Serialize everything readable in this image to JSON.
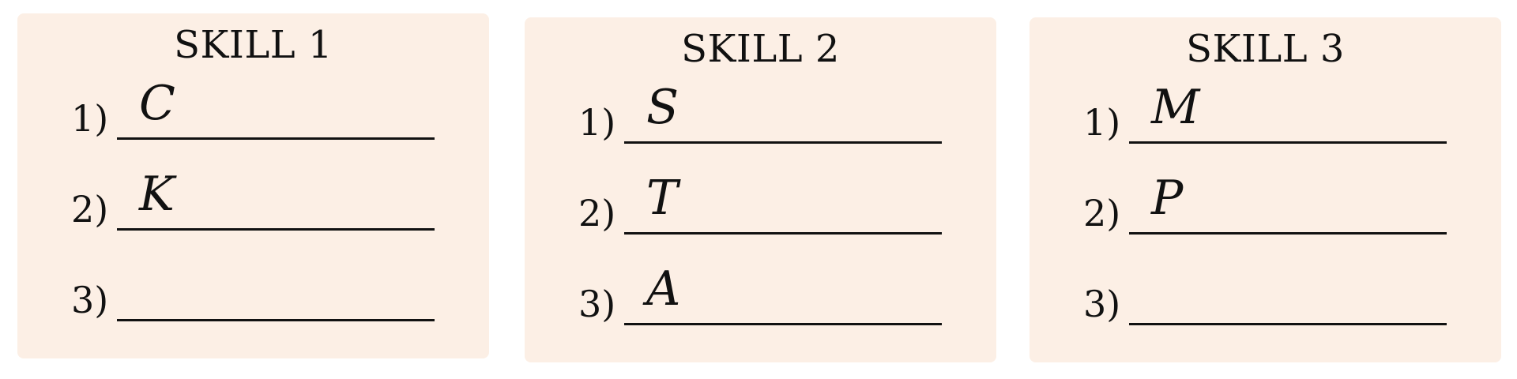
{
  "colors": {
    "card_background": "#fcefe5",
    "ink": "#111111",
    "page_background": "#ffffff"
  },
  "skills": [
    {
      "title": "SKILL 1",
      "rows": [
        {
          "number": "1)",
          "answer": "C"
        },
        {
          "number": "2)",
          "answer": "K"
        },
        {
          "number": "3)",
          "answer": ""
        }
      ]
    },
    {
      "title": "SKILL 2",
      "rows": [
        {
          "number": "1)",
          "answer": "S"
        },
        {
          "number": "2)",
          "answer": "T"
        },
        {
          "number": "3)",
          "answer": "A"
        }
      ]
    },
    {
      "title": "SKILL 3",
      "rows": [
        {
          "number": "1)",
          "answer": "M"
        },
        {
          "number": "2)",
          "answer": "P"
        },
        {
          "number": "3)",
          "answer": ""
        }
      ]
    }
  ]
}
